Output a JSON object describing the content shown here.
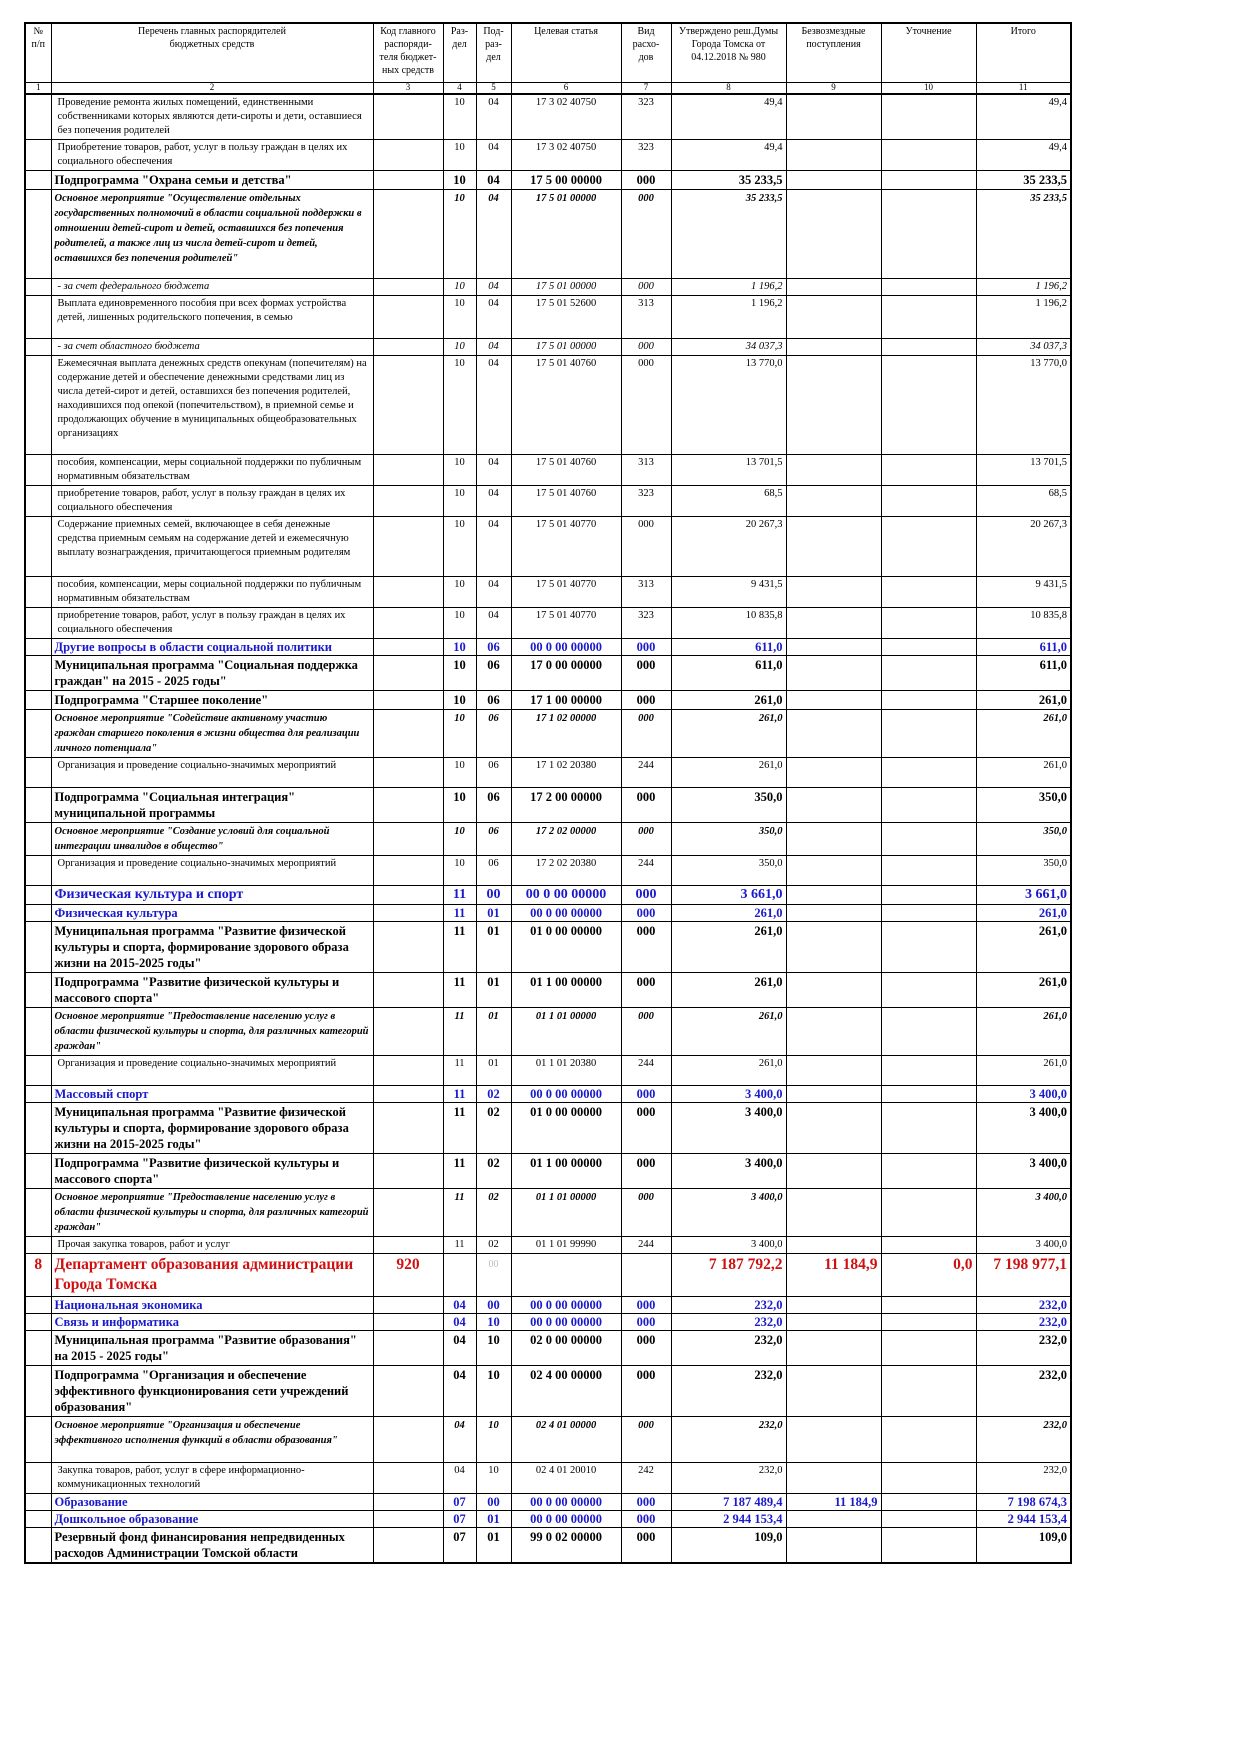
{
  "table": {
    "header": [
      "№\nп/п",
      "Перечень главных распорядителей\nбюджетных средств",
      "Код главного\nраспоряди-\nтеля бюджет-\nных средств",
      "Раз-\nдел",
      "Под-\nраз-\nдел",
      "Целевая статья",
      "Вид расхо-\nдов",
      "Утверждено реш.Думы\nГорода Томска от\n04.12.2018 № 980",
      "Безвозмездные\nпоступления",
      "Уточнение",
      "Итого"
    ],
    "column_numbers": [
      1,
      2,
      3,
      4,
      5,
      6,
      7,
      8,
      9,
      10,
      11
    ],
    "rows": [
      {
        "style": "normal",
        "cells": [
          null,
          "Проведение ремонта жилых помещений, единственными собственниками которых являются дети-сироты и дети, оставшиеся без попечения родителей",
          null,
          "10",
          "04",
          "17 3 02 40750",
          "323",
          "49,4",
          null,
          null,
          "49,4"
        ]
      },
      {
        "style": "normal",
        "cells": [
          null,
          "Приобретение товаров, работ, услуг в пользу граждан в целях их социального обеспечения",
          null,
          "10",
          "04",
          "17 3 02 40750",
          "323",
          "49,4",
          null,
          null,
          "49,4"
        ]
      },
      {
        "style": "bold",
        "cells": [
          null,
          "Подпрограмма \"Охрана семьи и детства\"",
          null,
          "10",
          "04",
          "17 5 00 00000",
          "000",
          "35 233,5",
          null,
          null,
          "35 233,5"
        ]
      },
      {
        "style": "bold-italic",
        "cells": [
          null,
          "Основное мероприятие \"Осуществление отдельных государственных полномочий в области социальной поддержки в отношении детей-сирот и детей, оставшихся без попечения родителей, а также лиц из числа детей-сирот и детей, оставшихся без попечения родителей\"",
          null,
          "10",
          "04",
          "17 5 01 00000",
          "000",
          "35 233,5",
          null,
          null,
          "35 233,5"
        ]
      },
      {
        "style": "italic",
        "cells": [
          null,
          "- за счет федерального бюджета",
          null,
          "10",
          "04",
          "17 5 01 00000",
          "000",
          "1 196,2",
          null,
          null,
          "1 196,2"
        ]
      },
      {
        "style": "normal",
        "cells": [
          null,
          "Выплата единовременного пособия при всех формах устройства детей, лишенных родительского попечения, в семью",
          null,
          "10",
          "04",
          "17 5 01 52600",
          "313",
          "1 196,2",
          null,
          null,
          "1 196,2"
        ]
      },
      {
        "style": "italic",
        "cells": [
          null,
          "- за счет областного бюджета",
          null,
          "10",
          "04",
          "17 5 01 00000",
          "000",
          "34 037,3",
          null,
          null,
          "34 037,3"
        ]
      },
      {
        "style": "normal",
        "cells": [
          null,
          "Ежемесячная выплата денежных средств опекунам (попечителям) на содержание детей и обеспечение денежными средствами лиц из числа детей-сирот и детей, оставшихся без попечения родителей, находившихся под опекой (попечительством), в приемной семье и продолжающих обучение в муниципальных общеобразовательных организациях",
          null,
          "10",
          "04",
          "17 5 01 40760",
          "000",
          "13 770,0",
          null,
          null,
          "13 770,0"
        ]
      },
      {
        "style": "normal",
        "cells": [
          null,
          "пособия, компенсации, меры социальной поддержки по публичным нормативным обязательствам",
          null,
          "10",
          "04",
          "17 5 01 40760",
          "313",
          "13 701,5",
          null,
          null,
          "13 701,5"
        ]
      },
      {
        "style": "normal",
        "cells": [
          null,
          "приобретение товаров, работ, услуг в пользу граждан в целях их социального обеспечения",
          null,
          "10",
          "04",
          "17 5 01 40760",
          "323",
          "68,5",
          null,
          null,
          "68,5"
        ]
      },
      {
        "style": "normal",
        "cells": [
          null,
          "Содержание приемных семей, включающее в себя денежные средства приемным семьям на содержание детей и ежемесячную выплату вознаграждения, причитающегося приемным родителям",
          null,
          "10",
          "04",
          "17 5 01 40770",
          "000",
          "20 267,3",
          null,
          null,
          "20 267,3"
        ]
      },
      {
        "style": "normal",
        "cells": [
          null,
          "пособия, компенсации, меры социальной поддержки по публичным нормативным обязательствам",
          null,
          "10",
          "04",
          "17 5 01 40770",
          "313",
          "9 431,5",
          null,
          null,
          "9 431,5"
        ]
      },
      {
        "style": "normal",
        "cells": [
          null,
          "приобретение товаров, работ, услуг в пользу граждан в целях их социального обеспечения",
          null,
          "10",
          "04",
          "17 5 01 40770",
          "323",
          "10 835,8",
          null,
          null,
          "10 835,8"
        ]
      },
      {
        "style": "blue",
        "cells": [
          null,
          "Другие вопросы в области социальной политики",
          null,
          "10",
          "06",
          "00 0 00 00000",
          "000",
          "611,0",
          null,
          null,
          "611,0"
        ]
      },
      {
        "style": "bold",
        "cells": [
          null,
          "Муниципальная программа \"Социальная поддержка граждан\" на 2015 - 2025 годы\"",
          null,
          "10",
          "06",
          "17 0 00 00000",
          "000",
          "611,0",
          null,
          null,
          "611,0"
        ]
      },
      {
        "style": "bold",
        "cells": [
          null,
          "Подпрограмма \"Старшее поколение\"",
          null,
          "10",
          "06",
          "17 1 00 00000",
          "000",
          "261,0",
          null,
          null,
          "261,0"
        ]
      },
      {
        "style": "bold-italic",
        "cells": [
          null,
          "Основное мероприятие \"Содействие активному участию граждан старшего поколения в жизни общества для реализации личного потенциала\"",
          null,
          "10",
          "06",
          "17 1 02 00000",
          "000",
          "261,0",
          null,
          null,
          "261,0"
        ]
      },
      {
        "style": "normal",
        "cells": [
          null,
          "Организация и проведение социально-значимых мероприятий",
          null,
          "10",
          "06",
          "17 1 02 20380",
          "244",
          "261,0",
          null,
          null,
          "261,0"
        ]
      },
      {
        "style": "bold",
        "cells": [
          null,
          "Подпрограмма \"Социальная интеграция\" муниципальной программы",
          null,
          "10",
          "06",
          "17 2 00 00000",
          "000",
          "350,0",
          null,
          null,
          "350,0"
        ]
      },
      {
        "style": "bold-italic",
        "cells": [
          null,
          "Основное мероприятие \"Создание условий для социальной интеграции инвалидов в общество\"",
          null,
          "10",
          "06",
          "17 2 02 00000",
          "000",
          "350,0",
          null,
          null,
          "350,0"
        ]
      },
      {
        "style": "normal",
        "cells": [
          null,
          "Организация и проведение социально-значимых мероприятий",
          null,
          "10",
          "06",
          "17 2 02 20380",
          "244",
          "350,0",
          null,
          null,
          "350,0"
        ]
      },
      {
        "style": "blue-large",
        "cells": [
          null,
          "Физическая культура и спорт",
          null,
          "11",
          "00",
          "00 0 00 00000",
          "000",
          "3 661,0",
          null,
          null,
          "3 661,0"
        ]
      },
      {
        "style": "blue",
        "cells": [
          null,
          "Физическая культура",
          null,
          "11",
          "01",
          "00 0 00 00000",
          "000",
          "261,0",
          null,
          null,
          "261,0"
        ]
      },
      {
        "style": "bold",
        "cells": [
          null,
          "Муниципальная программа \"Развитие физической культуры и спорта, формирование здорового образа жизни на 2015-2025 годы\"",
          null,
          "11",
          "01",
          "01 0 00 00000",
          "000",
          "261,0",
          null,
          null,
          "261,0"
        ]
      },
      {
        "style": "bold",
        "cells": [
          null,
          "Подпрограмма \"Развитие физической культуры и массового спорта\"",
          null,
          "11",
          "01",
          "01 1 00 00000",
          "000",
          "261,0",
          null,
          null,
          "261,0"
        ]
      },
      {
        "style": "bold-italic",
        "cells": [
          null,
          "Основное мероприятие \"Предоставление населению услуг в области физической культуры и спорта, для различных категорий граждан\"",
          null,
          "11",
          "01",
          "01 1 01 00000",
          "000",
          "261,0",
          null,
          null,
          "261,0"
        ]
      },
      {
        "style": "normal",
        "cells": [
          null,
          "Организация и проведение социально-значимых мероприятий",
          null,
          "11",
          "01",
          "01 1 01 20380",
          "244",
          "261,0",
          null,
          null,
          "261,0"
        ]
      },
      {
        "style": "blue",
        "cells": [
          null,
          "Массовый спорт",
          null,
          "11",
          "02",
          "00 0 00 00000",
          "000",
          "3 400,0",
          null,
          null,
          "3 400,0"
        ]
      },
      {
        "style": "bold",
        "cells": [
          null,
          "Муниципальная программа \"Развитие физической культуры и спорта, формирование здорового образа жизни на 2015-2025 годы\"",
          null,
          "11",
          "02",
          "01 0 00 00000",
          "000",
          "3 400,0",
          null,
          null,
          "3 400,0"
        ]
      },
      {
        "style": "bold",
        "cells": [
          null,
          "Подпрограмма \"Развитие физической культуры и массового спорта\"",
          null,
          "11",
          "02",
          "01 1 00 00000",
          "000",
          "3 400,0",
          null,
          null,
          "3 400,0"
        ]
      },
      {
        "style": "bold-italic",
        "cells": [
          null,
          "Основное мероприятие \"Предоставление населению услуг в области физической культуры и спорта, для различных категорий граждан\"",
          null,
          "11",
          "02",
          "01 1 01 00000",
          "000",
          "3 400,0",
          null,
          null,
          "3 400,0"
        ]
      },
      {
        "style": "normal",
        "cells": [
          null,
          "Прочая закупка товаров, работ и услуг",
          null,
          "11",
          "02",
          "01 1 01 99990",
          "244",
          "3 400,0",
          null,
          null,
          "3 400,0"
        ]
      },
      {
        "style": "red",
        "cells": [
          "8",
          "Департамент образования администрации Города Томска",
          "920",
          null,
          "00",
          null,
          null,
          "7 187 792,2",
          "11 184,9",
          "0,0",
          "7 198 977,1"
        ]
      },
      {
        "style": "blue",
        "cells": [
          null,
          "Национальная экономика",
          null,
          "04",
          "00",
          "00 0 00 00000",
          "000",
          "232,0",
          null,
          null,
          "232,0"
        ]
      },
      {
        "style": "blue",
        "cells": [
          null,
          "Связь и информатика",
          null,
          "04",
          "10",
          "00 0 00 00000",
          "000",
          "232,0",
          null,
          null,
          "232,0"
        ]
      },
      {
        "style": "bold",
        "cells": [
          null,
          "Муниципальная программа \"Развитие образования\" на 2015 - 2025 годы\"",
          null,
          "04",
          "10",
          "02 0 00 00000",
          "000",
          "232,0",
          null,
          null,
          "232,0"
        ]
      },
      {
        "style": "bold",
        "cells": [
          null,
          "Подпрограмма \"Организация и обеспечение эффективного функционирования сети учреждений образования\"",
          null,
          "04",
          "10",
          "02 4 00 00000",
          "000",
          "232,0",
          null,
          null,
          "232,0"
        ]
      },
      {
        "style": "bold-italic",
        "cells": [
          null,
          "Основное мероприятие \"Организация и обеспечение эффективного исполнения функций в области образования\"",
          null,
          "04",
          "10",
          "02 4 01 00000",
          "000",
          "232,0",
          null,
          null,
          "232,0"
        ]
      },
      {
        "style": "normal",
        "cells": [
          null,
          "Закупка товаров, работ, услуг в сфере информационно-коммуникационных технологий",
          null,
          "04",
          "10",
          "02 4 01 20010",
          "242",
          "232,0",
          null,
          null,
          "232,0"
        ]
      },
      {
        "style": "blue",
        "cells": [
          null,
          "Образование",
          null,
          "07",
          "00",
          "00 0 00 00000",
          "000",
          "7 187 489,4",
          "11 184,9",
          null,
          "7 198 674,3"
        ]
      },
      {
        "style": "blue",
        "cells": [
          null,
          "Дошкольное образование",
          null,
          "07",
          "01",
          "00 0 00 00000",
          "000",
          "2 944 153,4",
          null,
          null,
          "2 944 153,4"
        ]
      },
      {
        "style": "bold",
        "cells": [
          null,
          "Резервный фонд финансирования непредвиденных расходов Администрации Томской области",
          null,
          "07",
          "01",
          "99 0 02 00000",
          "000",
          "109,0",
          null,
          null,
          "109,0"
        ]
      }
    ]
  }
}
